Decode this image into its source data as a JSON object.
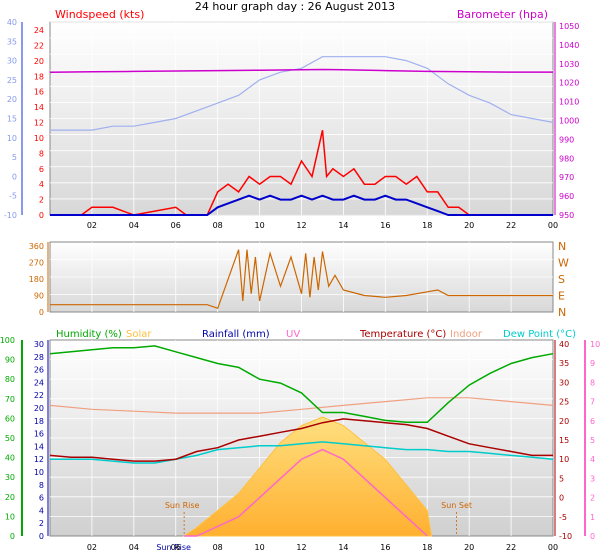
{
  "title": "24 hour graph day : 26 August 2013",
  "colors": {
    "wind": "#ff0000",
    "wind_dark": "#0000cc",
    "baro": "#cc00cc",
    "temp_old": "#a0b0f0",
    "dir": "#cc6600",
    "humidity": "#00aa00",
    "solar": "#ffc040",
    "uv": "#ff66cc",
    "temperature": "#aa0000",
    "indoor": "#f0a080",
    "dewpoint": "#00cccc",
    "rain": "#0000aa",
    "grid": "#ffffff",
    "axis_blue": "#8899ee"
  },
  "chart_data": [
    {
      "type": "line",
      "name": "wind-baro",
      "left_label": "Windspeed (kts)",
      "right_label": "Barometer (hpa)",
      "left_ticks": [
        "24",
        "22",
        "20",
        "18",
        "16",
        "14",
        "12",
        "10",
        "8",
        "6",
        "4",
        "2",
        "0"
      ],
      "far_left_ticks": [
        "40",
        "35",
        "30",
        "25",
        "20",
        "15",
        "10",
        "5",
        "0",
        "-5",
        "-10"
      ],
      "right_ticks": [
        "1050",
        "1040",
        "1030",
        "1020",
        "1010",
        "1000",
        "990",
        "980",
        "970",
        "960",
        "950"
      ],
      "x_ticks": [
        "02",
        "04",
        "06",
        "08",
        "10",
        "12",
        "14",
        "16",
        "18",
        "20",
        "22",
        "00"
      ],
      "series": [
        {
          "key": "barometer",
          "x": [
            0,
            2,
            4,
            6,
            8,
            10,
            12,
            13,
            14,
            16,
            18,
            20,
            22,
            24
          ],
          "y": [
            1025.5,
            1025.8,
            1026,
            1026.2,
            1026.4,
            1026.6,
            1026.8,
            1027,
            1026.8,
            1026.4,
            1026,
            1025.8,
            1025.6,
            1025.6
          ]
        },
        {
          "key": "temp_trace",
          "x": [
            0,
            2,
            3,
            4,
            5,
            6,
            7,
            8,
            9,
            10,
            11,
            12,
            13,
            14,
            15,
            16,
            17,
            18,
            19,
            20,
            21,
            22,
            23,
            24
          ],
          "y": [
            12,
            12,
            13,
            13,
            14,
            15,
            17,
            19,
            21,
            25,
            27,
            28,
            31,
            31,
            31,
            31,
            30,
            28,
            24,
            21,
            19,
            16,
            15,
            14
          ]
        },
        {
          "key": "wind_gust",
          "x": [
            0,
            1.5,
            2,
            3,
            4,
            5,
            6,
            6.5,
            7,
            7.5,
            8,
            8.5,
            9,
            9.5,
            10,
            10.5,
            11,
            11.5,
            12,
            12.5,
            13,
            13.2,
            13.5,
            14,
            14.5,
            15,
            15.5,
            16,
            16.5,
            17,
            17.5,
            18,
            18.5,
            19,
            19.5,
            20,
            21,
            22,
            23,
            24
          ],
          "y": [
            0,
            0,
            1,
            1,
            0,
            0.5,
            1,
            0,
            0,
            0,
            3,
            4,
            3,
            5,
            4,
            5,
            5,
            4,
            7,
            5,
            11,
            5,
            6,
            5,
            6,
            4,
            4,
            5,
            5,
            4,
            5,
            3,
            3,
            1,
            1,
            0,
            0,
            0,
            0,
            0
          ]
        },
        {
          "key": "wind_avg",
          "x": [
            0,
            2,
            4,
            6,
            7.5,
            8,
            8.5,
            9,
            9.5,
            10,
            10.5,
            11,
            11.5,
            12,
            12.5,
            13,
            13.5,
            14,
            14.5,
            15,
            15.5,
            16,
            16.5,
            17,
            17.5,
            18,
            18.5,
            19,
            20,
            22,
            24
          ],
          "y": [
            0,
            0,
            0,
            0,
            0,
            1,
            1.5,
            2,
            2.5,
            2,
            2.5,
            2,
            2,
            2.5,
            2,
            2.5,
            2,
            2,
            2.5,
            2,
            2,
            2.5,
            2,
            2,
            1.5,
            1,
            0.5,
            0,
            0,
            0,
            0
          ]
        }
      ]
    },
    {
      "type": "line",
      "name": "wind-direction",
      "left_ticks": [
        "360",
        "270",
        "180",
        "90",
        "0"
      ],
      "right_ticks": [
        "N",
        "W",
        "S",
        "E",
        "N"
      ],
      "series": [
        {
          "key": "direction",
          "x": [
            0,
            2,
            4,
            6,
            7.5,
            8,
            9,
            9.2,
            9.4,
            9.6,
            9.8,
            10,
            10.5,
            11,
            11.5,
            12,
            12.2,
            12.4,
            12.6,
            12.8,
            13,
            13.3,
            13.6,
            14,
            15,
            16,
            17,
            18,
            18.5,
            19,
            20,
            22,
            24
          ],
          "y": [
            40,
            40,
            40,
            40,
            40,
            20,
            340,
            60,
            340,
            100,
            300,
            60,
            320,
            140,
            300,
            100,
            320,
            80,
            300,
            120,
            330,
            140,
            200,
            120,
            90,
            80,
            90,
            110,
            120,
            90,
            90,
            90,
            90
          ]
        }
      ]
    },
    {
      "type": "line",
      "name": "multi-sensor",
      "labels": [
        "Humidity (%)",
        "Solar",
        "Rainfall (mm)",
        "UV",
        "Temperature (°C)",
        "Indoor",
        "Dew Point (°C)"
      ],
      "hum_ticks": [
        "100",
        "90",
        "80",
        "70",
        "60",
        "50",
        "40",
        "30",
        "20",
        "10",
        "0"
      ],
      "rain_ticks": [
        "30",
        "28",
        "26",
        "24",
        "22",
        "20",
        "18",
        "16",
        "14",
        "12",
        "10",
        "8",
        "6",
        "4",
        "2",
        "0"
      ],
      "temp_ticks": [
        "40",
        "35",
        "30",
        "25",
        "20",
        "15",
        "10",
        "5",
        "0",
        "-5",
        "-10"
      ],
      "uv_ticks": [
        "10",
        "9",
        "8",
        "7",
        "6",
        "5",
        "4",
        "3",
        "2",
        "1",
        "0"
      ],
      "x_ticks": [
        "02",
        "04",
        "Sun Rise",
        "06",
        "08",
        "10",
        "12",
        "14",
        "16",
        "18",
        "20",
        "22",
        "00"
      ],
      "annotations": [
        "Sun Rise",
        "Sun Set"
      ],
      "series": [
        {
          "key": "humidity",
          "x": [
            0,
            1,
            2,
            3,
            4,
            5,
            6,
            7,
            8,
            9,
            10,
            11,
            12,
            13,
            14,
            15,
            16,
            17,
            18,
            19,
            20,
            21,
            22,
            23,
            24
          ],
          "y": [
            93,
            94,
            95,
            96,
            96,
            97,
            94,
            91,
            88,
            86,
            80,
            78,
            73,
            63,
            63,
            61,
            59,
            58,
            58,
            68,
            77,
            83,
            88,
            91,
            93
          ]
        },
        {
          "key": "temperature",
          "x": [
            0,
            1,
            2,
            3,
            4,
            5,
            6,
            7,
            8,
            9,
            10,
            11,
            12,
            13,
            14,
            15,
            16,
            17,
            18,
            19,
            20,
            21,
            22,
            23,
            24
          ],
          "y": [
            11,
            10.5,
            10.5,
            10,
            9.5,
            9.5,
            10,
            12,
            13,
            15,
            16,
            17,
            18,
            19.5,
            20.5,
            20,
            19.5,
            19,
            18,
            16,
            14,
            13,
            12,
            11,
            11
          ]
        },
        {
          "key": "dewpoint",
          "x": [
            0,
            1,
            2,
            3,
            4,
            5,
            6,
            7,
            8,
            9,
            10,
            11,
            12,
            13,
            14,
            15,
            16,
            17,
            18,
            19,
            20,
            21,
            22,
            23,
            24
          ],
          "y": [
            10,
            10,
            10,
            9.5,
            9,
            9,
            10,
            11,
            12.5,
            13,
            13.5,
            13.5,
            14,
            14.5,
            14,
            13.5,
            13,
            12.5,
            12.5,
            12,
            12,
            11.5,
            11,
            10.5,
            10
          ]
        },
        {
          "key": "indoor",
          "x": [
            0,
            2,
            4,
            6,
            8,
            10,
            12,
            14,
            16,
            18,
            20,
            22,
            24
          ],
          "y": [
            24,
            23,
            22.5,
            22,
            22,
            22,
            23,
            24,
            25,
            26,
            26,
            25,
            24
          ]
        },
        {
          "key": "solar",
          "x": [
            6.4,
            7,
            8,
            9,
            10,
            11,
            12,
            13,
            14,
            15,
            16,
            17,
            18,
            18.2
          ],
          "y": [
            0,
            1,
            3,
            5,
            8,
            11,
            13,
            14,
            13,
            11,
            9,
            6,
            3,
            0
          ]
        },
        {
          "key": "uv",
          "x": [
            6.4,
            7,
            8,
            9,
            10,
            11,
            12,
            13,
            14,
            15,
            16,
            17,
            18
          ],
          "y": [
            0,
            0,
            0.5,
            1,
            2,
            3,
            4,
            4.5,
            4,
            3,
            2,
            1,
            0
          ]
        },
        {
          "key": "rain",
          "x": [
            0,
            24
          ],
          "y": [
            0,
            0
          ]
        }
      ]
    }
  ]
}
